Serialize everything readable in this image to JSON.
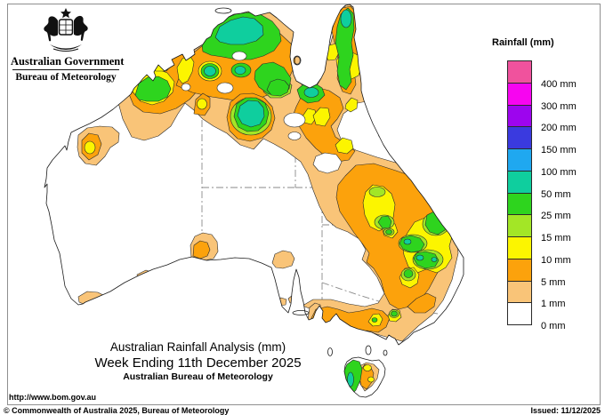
{
  "header": {
    "government": "Australian Government",
    "bureau": "Bureau of Meteorology"
  },
  "legend": {
    "title": "Rainfall (mm)",
    "items": [
      {
        "label": "400 mm",
        "color_key": "c400"
      },
      {
        "label": "300 mm",
        "color_key": "c300"
      },
      {
        "label": "200 mm",
        "color_key": "c200"
      },
      {
        "label": "150 mm",
        "color_key": "c150"
      },
      {
        "label": "100 mm",
        "color_key": "c100"
      },
      {
        "label": "50 mm",
        "color_key": "c50"
      },
      {
        "label": "25 mm",
        "color_key": "c25"
      },
      {
        "label": "15 mm",
        "color_key": "c15"
      },
      {
        "label": "10 mm",
        "color_key": "c10"
      },
      {
        "label": "5 mm",
        "color_key": "c5"
      },
      {
        "label": "1 mm",
        "color_key": "c1"
      },
      {
        "label": "0 mm",
        "color_key": "c0"
      }
    ]
  },
  "colors": {
    "c400": "#F0529D",
    "c300": "#F705F0",
    "c200": "#9D05EE",
    "c150": "#3A3ADF",
    "c100": "#1FA8F0",
    "c50": "#0FCE9E",
    "c25": "#2ED41E",
    "c15": "#A3E626",
    "c10": "#FCF500",
    "c5": "#FCA20C",
    "c1": "#F9C478",
    "c0": "#FFFFFF",
    "state_border": "#8a8a8a"
  },
  "titles": {
    "line1": "Australian Rainfall Analysis (mm)",
    "line2": "Week Ending 11th December 2025",
    "line3": "Australian Bureau of Meteorology"
  },
  "footer": {
    "url": "http://www.bom.gov.au",
    "copyright": "© Commonwealth of Australia 2025, Bureau of Meteorology",
    "issued": "Issued: 11/12/2025"
  },
  "chart_data": {
    "type": "heatmap",
    "title": "Australian Rainfall Analysis (mm)",
    "subtitle": "Week Ending 11th December 2025",
    "source": "Australian Bureau of Meteorology",
    "units": "mm",
    "legend_scale_mm": [
      0,
      1,
      5,
      10,
      15,
      25,
      50,
      100,
      150,
      200,
      300,
      400
    ],
    "summary": "Contour map of weekly rainfall over Australia: 50-100 mm cores over the Top End, central Northern Territory and Cape York; 25-50 mm patches over the Kimberley, Gulf Country, eastern New South Wales and western Tasmania; broad 1-10 mm band across northern and eastern Australia and Victoria; largely dry (0 mm) interior, west and south."
  }
}
